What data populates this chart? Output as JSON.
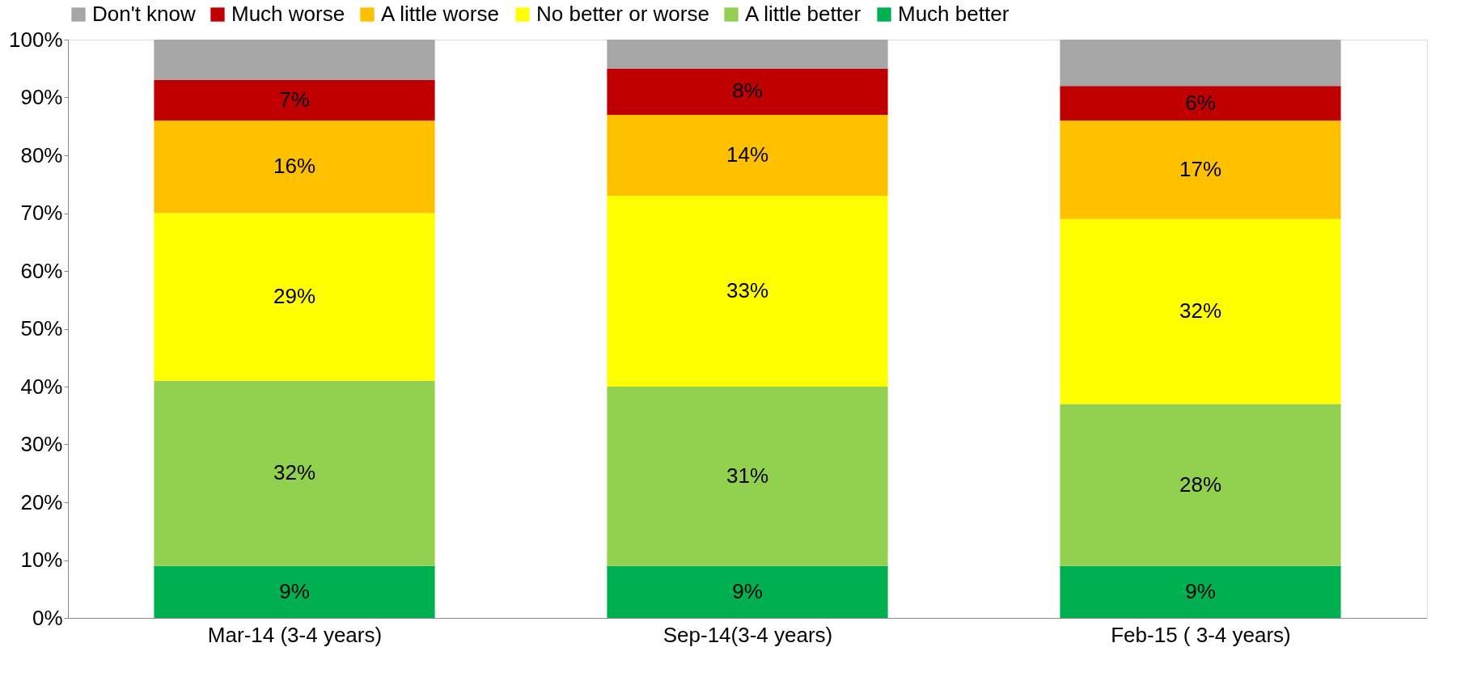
{
  "chart_data": {
    "type": "bar",
    "stacked": true,
    "categories": [
      "Mar-14 (3-4 years)",
      "Sep-14(3-4 years)",
      "Feb-15 ( 3-4 years)"
    ],
    "series": [
      {
        "name": "Much better",
        "color": "#00b050",
        "values": [
          9,
          9,
          9
        ],
        "value_labels": [
          "9%",
          "9%",
          "9%"
        ]
      },
      {
        "name": "A little better",
        "color": "#92d050",
        "values": [
          32,
          31,
          28
        ],
        "value_labels": [
          "32%",
          "31%",
          "28%"
        ]
      },
      {
        "name": "No better or worse",
        "color": "#ffff00",
        "values": [
          29,
          33,
          32
        ],
        "value_labels": [
          "29%",
          "33%",
          "32%"
        ]
      },
      {
        "name": "A little worse",
        "color": "#ffc000",
        "values": [
          16,
          14,
          17
        ],
        "value_labels": [
          "16%",
          "14%",
          "17%"
        ]
      },
      {
        "name": "Much worse",
        "color": "#c00000",
        "values": [
          7,
          8,
          6
        ],
        "value_labels": [
          "7%",
          "8%",
          "6%"
        ]
      },
      {
        "name": "Don't know",
        "color": "#a6a6a6",
        "values": [
          7,
          5,
          8
        ],
        "value_labels": [
          null,
          null,
          null
        ]
      }
    ],
    "ylim": [
      0,
      100
    ],
    "yticks": [
      {
        "value": 0,
        "label": "0%"
      },
      {
        "value": 10,
        "label": "10%"
      },
      {
        "value": 20,
        "label": "20%"
      },
      {
        "value": 30,
        "label": "30%"
      },
      {
        "value": 40,
        "label": "40%"
      },
      {
        "value": 50,
        "label": "50%"
      },
      {
        "value": 60,
        "label": "60%"
      },
      {
        "value": 70,
        "label": "70%"
      },
      {
        "value": 80,
        "label": "80%"
      },
      {
        "value": 90,
        "label": "90%"
      },
      {
        "value": 100,
        "label": "100%"
      }
    ],
    "grid": false,
    "legend": "top"
  }
}
